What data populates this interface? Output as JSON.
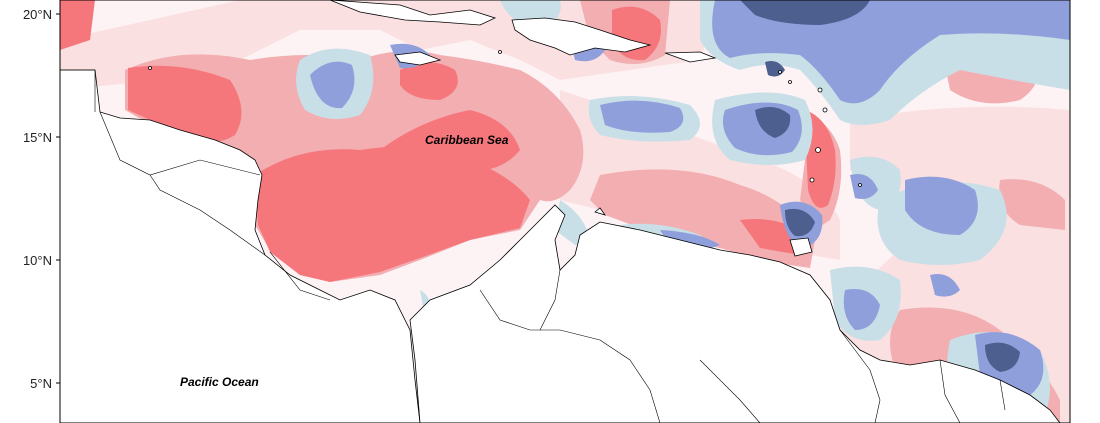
{
  "map": {
    "labels": {
      "caribbean": "Caribbean Sea",
      "pacific": "Pacific Ocean"
    },
    "lat_ticks": [
      "20°N",
      "15°N",
      "10°N",
      "5°N"
    ],
    "colors": {
      "strong_positive": "#f5777c",
      "positive": "#f2aeb1",
      "weak_positive": "#fbe0e2",
      "neutral": "#fdf3f4",
      "weak_negative": "#c9dfe7",
      "negative": "#8f9fdb",
      "strong_negative": "#4c5f8f",
      "land": "#ffffff",
      "coastline": "#000000"
    }
  }
}
